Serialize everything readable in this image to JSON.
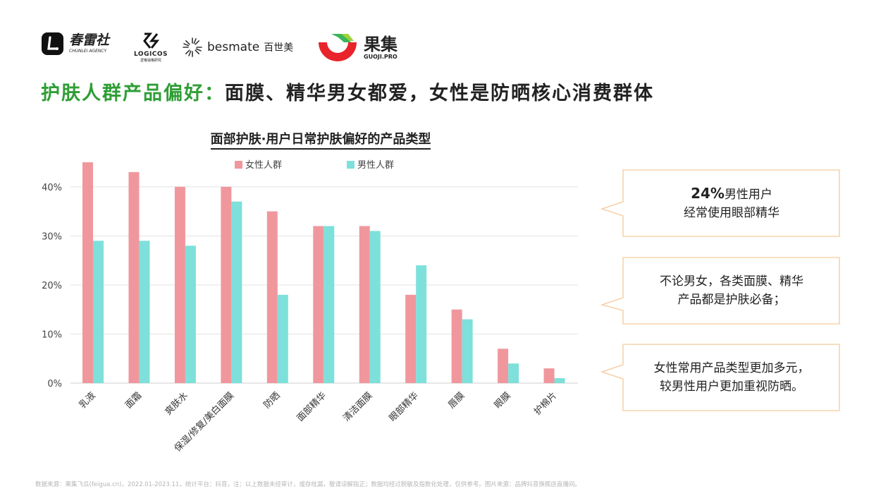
{
  "logos": {
    "chunlei": {
      "name": "春雷社",
      "sub": "CHUNLEI AGENCY",
      "icon": "chunlei-logo-icon"
    },
    "logicos": {
      "name": "LOGICOS",
      "sub": "逻格钱格研究",
      "icon": "logicos-logo-icon"
    },
    "besmate": {
      "name": "besmate",
      "cn": "百世美",
      "icon": "besmate-logo-icon"
    },
    "guoji": {
      "name": "果集",
      "sub": "GUOJI.PRO",
      "icon": "guoji-logo-icon"
    }
  },
  "headline": {
    "highlight": "护肤人群产品偏好：",
    "rest": "面膜、精华男女都爱，女性是防晒核心消费群体"
  },
  "chart_data": {
    "type": "bar",
    "title": "面部护肤·用户日常护肤偏好的产品类型",
    "categories": [
      "乳液",
      "面霜",
      "爽肤水",
      "保湿/修复/美白面膜",
      "防晒",
      "面部精华",
      "清洁面膜",
      "眼部精华",
      "唇膜",
      "眼膜",
      "护棉片"
    ],
    "series": [
      {
        "name": "女性人群",
        "color": "#f0979d",
        "values": [
          45,
          43,
          40,
          40,
          35,
          32,
          32,
          18,
          15,
          7,
          3
        ]
      },
      {
        "name": "男性人群",
        "color": "#7ee0da",
        "values": [
          29,
          29,
          28,
          37,
          18,
          32,
          31,
          24,
          13,
          4,
          1
        ]
      }
    ],
    "y_ticks": [
      "0%",
      "10%",
      "20%",
      "30%",
      "40%"
    ],
    "ylim": [
      0,
      45
    ],
    "grid": true,
    "legend_position": "top-center"
  },
  "callouts": [
    {
      "bold": "24%",
      "line1": "男性用户",
      "line2": "经常使用眼部精华"
    },
    {
      "line1": "不论男女，各类面膜、精华",
      "line2": "产品都是护肤必备；"
    },
    {
      "line1": "女性常用产品类型更加多元，",
      "line2": "较男性用户更加重视防晒。"
    }
  ],
  "callout_border_color": "#f5c99b",
  "footnote": "数据来源：果集飞瓜(feigua.cn)，2022.01-2023.11，统计平台：抖音，注：以上数据未经审计，或存纰漏，敬请谅解指正；数据均经过脱敏及指数化处理，仅供参考。图片来源：品牌抖音旗舰店直播间。"
}
